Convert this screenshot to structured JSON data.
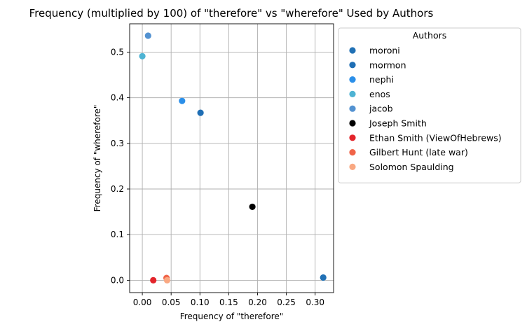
{
  "chart_data": {
    "type": "scatter",
    "title": "Frequency (multiplied by 100) of \"therefore\" vs \"wherefore\" Used by Authors",
    "xlabel": "Frequency of \"therefore\"",
    "ylabel": "Frequency of \"wherefore\"",
    "xlim": [
      -0.022,
      0.332
    ],
    "ylim": [
      -0.027,
      0.562
    ],
    "xticks": [
      0.0,
      0.05,
      0.1,
      0.15,
      0.2,
      0.25,
      0.3
    ],
    "xtick_labels": [
      "0.00",
      "0.05",
      "0.10",
      "0.15",
      "0.20",
      "0.25",
      "0.30"
    ],
    "yticks": [
      0.0,
      0.1,
      0.2,
      0.3,
      0.4,
      0.5
    ],
    "ytick_labels": [
      "0.0",
      "0.1",
      "0.2",
      "0.3",
      "0.4",
      "0.5"
    ],
    "grid": true,
    "legend_title": "Authors",
    "legend_position": "outside-right-top",
    "series": [
      {
        "name": "moroni",
        "color": "#2171b5",
        "points": [
          [
            0.314,
            0.006
          ]
        ]
      },
      {
        "name": "mormon",
        "color": "#1f6eb4",
        "points": [
          [
            0.101,
            0.367
          ]
        ]
      },
      {
        "name": "nephi",
        "color": "#2b8fe9",
        "points": [
          [
            0.069,
            0.393
          ]
        ]
      },
      {
        "name": "enos",
        "color": "#4eb3d3",
        "points": [
          [
            0.0,
            0.491
          ]
        ]
      },
      {
        "name": "jacob",
        "color": "#5392d1",
        "points": [
          [
            0.01,
            0.536
          ]
        ]
      },
      {
        "name": "Joseph Smith",
        "color": "#000000",
        "points": [
          [
            0.191,
            0.161
          ]
        ]
      },
      {
        "name": "Ethan Smith (ViewOfHebrews)",
        "color": "#e3242b",
        "points": [
          [
            0.019,
            0.0
          ]
        ]
      },
      {
        "name": "Gilbert Hunt (late war)",
        "color": "#f06448",
        "points": [
          [
            0.042,
            0.005
          ]
        ]
      },
      {
        "name": "Solomon Spaulding",
        "color": "#f9a882",
        "points": [
          [
            0.043,
            0.0
          ]
        ]
      }
    ]
  }
}
